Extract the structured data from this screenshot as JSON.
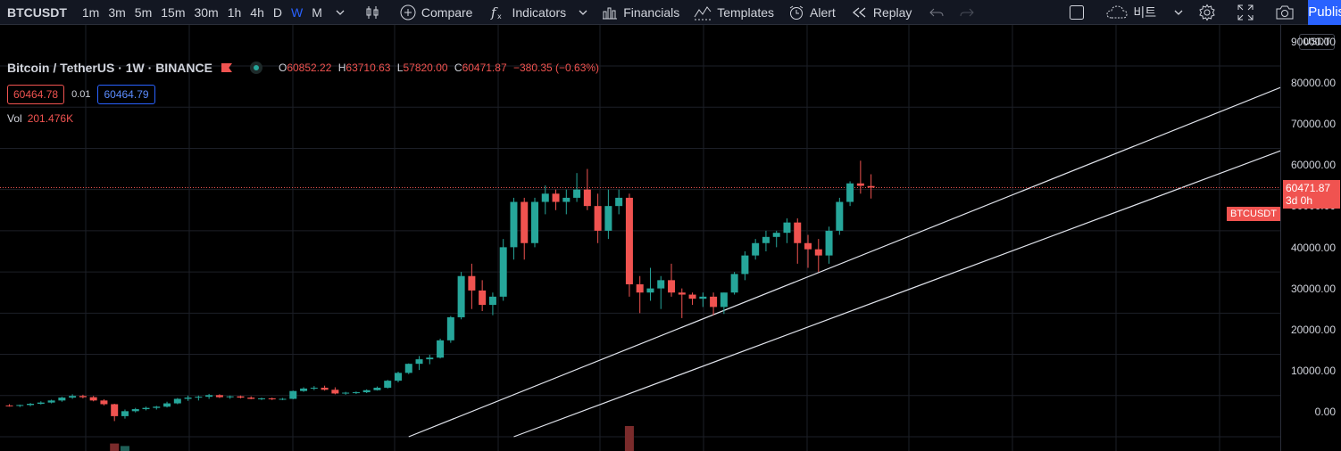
{
  "toolbar": {
    "symbol": "BTCUSDT",
    "intervals": [
      "1m",
      "3m",
      "5m",
      "15m",
      "30m",
      "1h",
      "4h",
      "D",
      "W",
      "M"
    ],
    "active_interval": "W",
    "compare_label": "Compare",
    "indicators_label": "Indicators",
    "financials_label": "Financials",
    "templates_label": "Templates",
    "alert_label": "Alert",
    "replay_label": "Replay",
    "layout_label": "비트",
    "publish_label": "Publish"
  },
  "legend": {
    "title": "Bitcoin / TetherUS · 1W · BINANCE",
    "open_key": "O",
    "open": "60852.22",
    "high_key": "H",
    "high": "63710.63",
    "low_key": "L",
    "low": "57820.00",
    "close_key": "C",
    "close": "60471.87",
    "change": "−380.35 (−0.63%)",
    "bid": "60464.78",
    "spread": "0.01",
    "ask": "60464.79",
    "vol_key": "Vol",
    "vol_value": "201.476K"
  },
  "price_scale": {
    "currency": "USDT",
    "ticks": [
      "90000.00",
      "80000.00",
      "70000.00",
      "60000.00",
      "50000.00",
      "40000.00",
      "30000.00",
      "20000.00",
      "10000.00",
      "0.00"
    ],
    "last_price": "60471.87",
    "countdown": "3d 0h",
    "symbol_tag": "BTCUSDT"
  },
  "colors": {
    "up": "#26a69a",
    "down": "#f05350",
    "accent": "#2962ff",
    "background": "#000000",
    "grid": "#1c1f27"
  },
  "chart_data": {
    "type": "candlestick",
    "symbol": "BTCUSDT",
    "interval": "1W",
    "ylim": [
      0,
      95000
    ],
    "candles": [
      [
        7600,
        7900,
        7300,
        7500
      ],
      [
        7500,
        7800,
        7200,
        7700
      ],
      [
        7700,
        8200,
        7400,
        8000
      ],
      [
        8000,
        8600,
        7800,
        8300
      ],
      [
        8300,
        9000,
        8100,
        8800
      ],
      [
        8800,
        9700,
        8500,
        9500
      ],
      [
        9500,
        10300,
        9200,
        9900
      ],
      [
        9900,
        10200,
        9300,
        9600
      ],
      [
        9600,
        9900,
        8600,
        8800
      ],
      [
        8800,
        9100,
        7600,
        7900
      ],
      [
        7900,
        8000,
        3800,
        5000
      ],
      [
        5000,
        6600,
        4400,
        6200
      ],
      [
        6200,
        7000,
        5900,
        6700
      ],
      [
        6700,
        7300,
        6400,
        7000
      ],
      [
        7000,
        7500,
        6600,
        7300
      ],
      [
        7300,
        8500,
        7100,
        8100
      ],
      [
        8100,
        9400,
        7900,
        9200
      ],
      [
        9200,
        10000,
        8700,
        9500
      ],
      [
        9500,
        10000,
        8800,
        9700
      ],
      [
        9700,
        10400,
        9200,
        10100
      ],
      [
        10100,
        10300,
        9400,
        9600
      ],
      [
        9600,
        10000,
        9200,
        9800
      ],
      [
        9800,
        10000,
        9300,
        9500
      ],
      [
        9500,
        9800,
        9100,
        9200
      ],
      [
        9200,
        9500,
        8900,
        9300
      ],
      [
        9300,
        9500,
        8900,
        9100
      ],
      [
        9100,
        9400,
        8900,
        9200
      ],
      [
        9200,
        11200,
        9100,
        11100
      ],
      [
        11100,
        12000,
        10900,
        11700
      ],
      [
        11700,
        12300,
        11300,
        11900
      ],
      [
        11900,
        12400,
        11200,
        11400
      ],
      [
        11400,
        12000,
        10300,
        10500
      ],
      [
        10500,
        10900,
        10200,
        10700
      ],
      [
        10700,
        11000,
        10400,
        10800
      ],
      [
        10800,
        11500,
        10600,
        11300
      ],
      [
        11300,
        12200,
        11200,
        11900
      ],
      [
        11900,
        13800,
        11700,
        13600
      ],
      [
        13600,
        15800,
        13200,
        15500
      ],
      [
        15500,
        17800,
        15200,
        17700
      ],
      [
        17700,
        19600,
        16200,
        18800
      ],
      [
        18800,
        19900,
        17600,
        19200
      ],
      [
        19200,
        23800,
        19000,
        23400
      ],
      [
        23400,
        29300,
        22800,
        29000
      ],
      [
        29000,
        40000,
        28500,
        39000
      ],
      [
        39000,
        42000,
        31000,
        35500
      ],
      [
        35500,
        38000,
        30500,
        32000
      ],
      [
        32000,
        35000,
        29500,
        34000
      ],
      [
        34000,
        48000,
        33000,
        46000
      ],
      [
        46000,
        58000,
        43000,
        57000
      ],
      [
        57000,
        58000,
        43000,
        47000
      ],
      [
        47000,
        58000,
        46000,
        57000
      ],
      [
        57000,
        61000,
        54000,
        59000
      ],
      [
        59000,
        60000,
        55000,
        57000
      ],
      [
        57000,
        60000,
        54000,
        58000
      ],
      [
        58000,
        64000,
        57000,
        60000
      ],
      [
        60000,
        65000,
        55000,
        56000
      ],
      [
        56000,
        59000,
        47000,
        50000
      ],
      [
        50000,
        60000,
        48000,
        56000
      ],
      [
        56000,
        60000,
        54000,
        58000
      ],
      [
        58000,
        59000,
        34000,
        37000
      ],
      [
        37000,
        39000,
        30000,
        35000
      ],
      [
        35000,
        41000,
        33000,
        36000
      ],
      [
        36000,
        39000,
        31000,
        38000
      ],
      [
        38000,
        42000,
        34000,
        35000
      ],
      [
        35000,
        36000,
        28800,
        34500
      ],
      [
        34500,
        35000,
        32000,
        33500
      ],
      [
        33500,
        35000,
        31500,
        34000
      ],
      [
        34000,
        35000,
        29500,
        31500
      ],
      [
        31500,
        35000,
        29800,
        35000
      ],
      [
        35000,
        40000,
        34500,
        39500
      ],
      [
        39500,
        45000,
        38000,
        44000
      ],
      [
        44000,
        48000,
        43000,
        47000
      ],
      [
        47000,
        50000,
        45000,
        48500
      ],
      [
        48500,
        50000,
        46000,
        49500
      ],
      [
        49500,
        53000,
        47000,
        52000
      ],
      [
        52000,
        53000,
        42000,
        47000
      ],
      [
        47000,
        49000,
        41000,
        45500
      ],
      [
        45500,
        48000,
        40000,
        44000
      ],
      [
        44000,
        51000,
        42000,
        50000
      ],
      [
        50000,
        58000,
        49000,
        57000
      ],
      [
        57000,
        62000,
        56000,
        61500
      ],
      [
        61500,
        67000,
        59000,
        60900
      ],
      [
        60852.22,
        63710.63,
        57820.0,
        60471.87
      ]
    ],
    "volume_bars": [
      {
        "index": 10,
        "value": 0.3,
        "up": false
      },
      {
        "index": 11,
        "value": 0.2,
        "up": true
      },
      {
        "index": 59,
        "value": 1.0,
        "up": false
      }
    ],
    "trendlines": [
      {
        "from": [
          38,
          0
        ],
        "to": [
          130,
          94000
        ]
      },
      {
        "from": [
          48,
          0
        ],
        "to": [
          130,
          78000
        ]
      }
    ],
    "last_price": 60471.87
  }
}
